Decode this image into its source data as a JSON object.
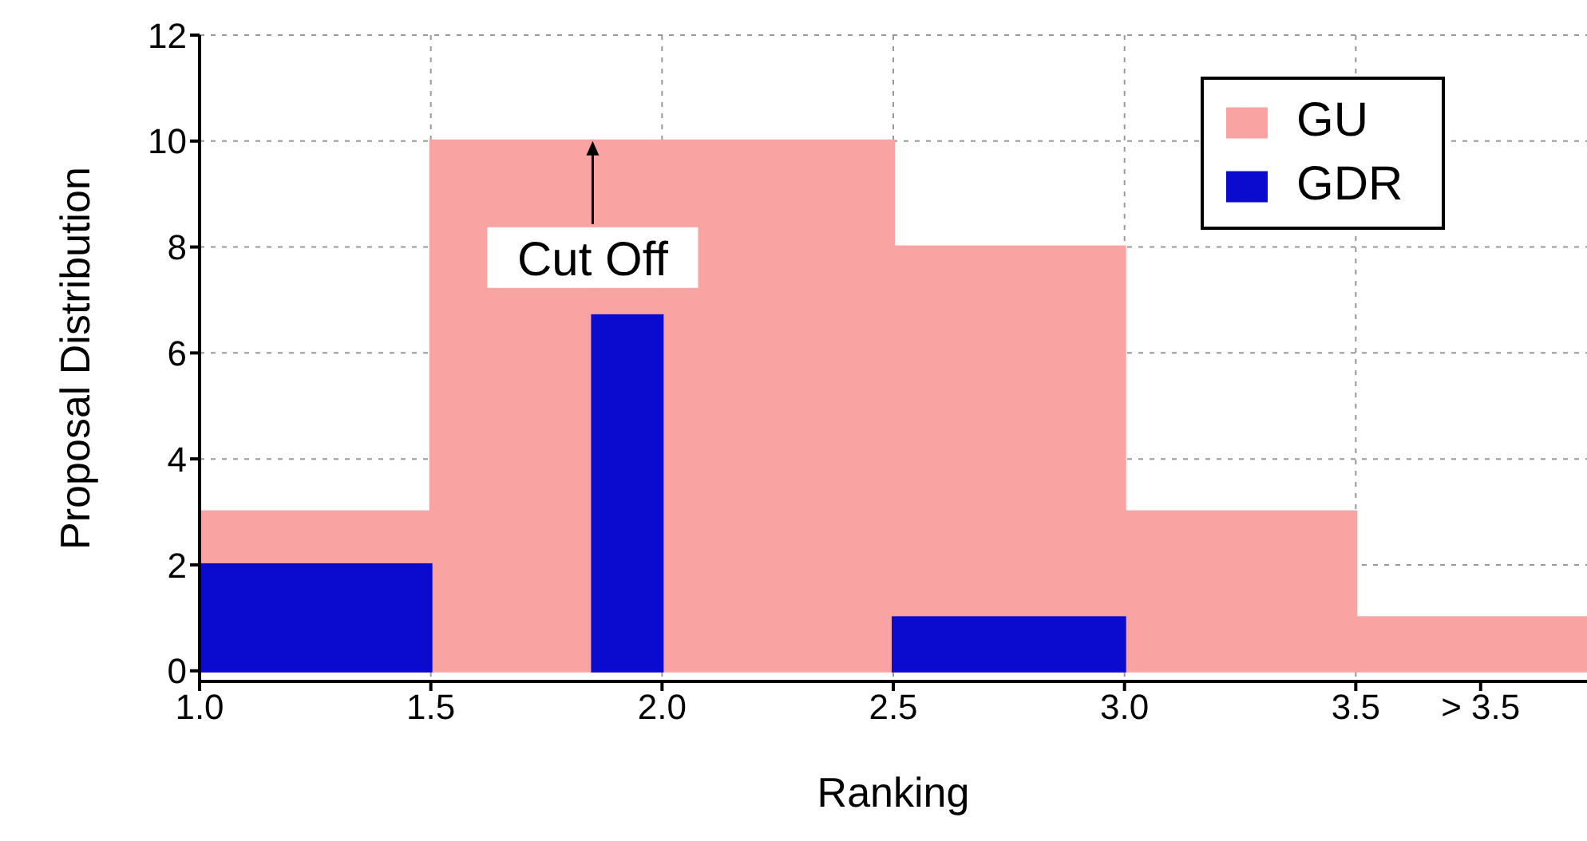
{
  "chart_data": {
    "type": "histogram",
    "xlabel": "Ranking",
    "ylabel": "Proposal Distribution",
    "series": [
      {
        "name": "GU",
        "color": "#f9a3a3",
        "values": [
          3,
          10,
          10,
          10,
          8,
          3,
          1
        ]
      },
      {
        "name": "GDR",
        "color": "#0b0bcf",
        "values": [
          2,
          0,
          6.7,
          0,
          1,
          0,
          0
        ]
      }
    ],
    "bins": [
      1,
      1.5,
      1.85,
      2,
      2.5,
      3,
      3.5,
      4
    ],
    "xlim": [
      1,
      4
    ],
    "xticks": [
      {
        "value": 1,
        "label": "1.0"
      },
      {
        "value": 1.5,
        "label": "1.5"
      },
      {
        "value": 2,
        "label": "2.0"
      },
      {
        "value": 2.5,
        "label": "2.5"
      },
      {
        "value": 3,
        "label": "3.0"
      },
      {
        "value": 3.5,
        "label": "3.5"
      },
      {
        "value": 3.77,
        "label": "> 3.5"
      }
    ],
    "ylim": [
      -0.2,
      12
    ],
    "yticks": [
      0,
      2,
      4,
      6,
      8,
      10,
      12
    ],
    "grid": true,
    "legend": "top right",
    "annotations": [
      {
        "text": "Cut Off",
        "x": 1.85,
        "y": 10
      }
    ]
  }
}
